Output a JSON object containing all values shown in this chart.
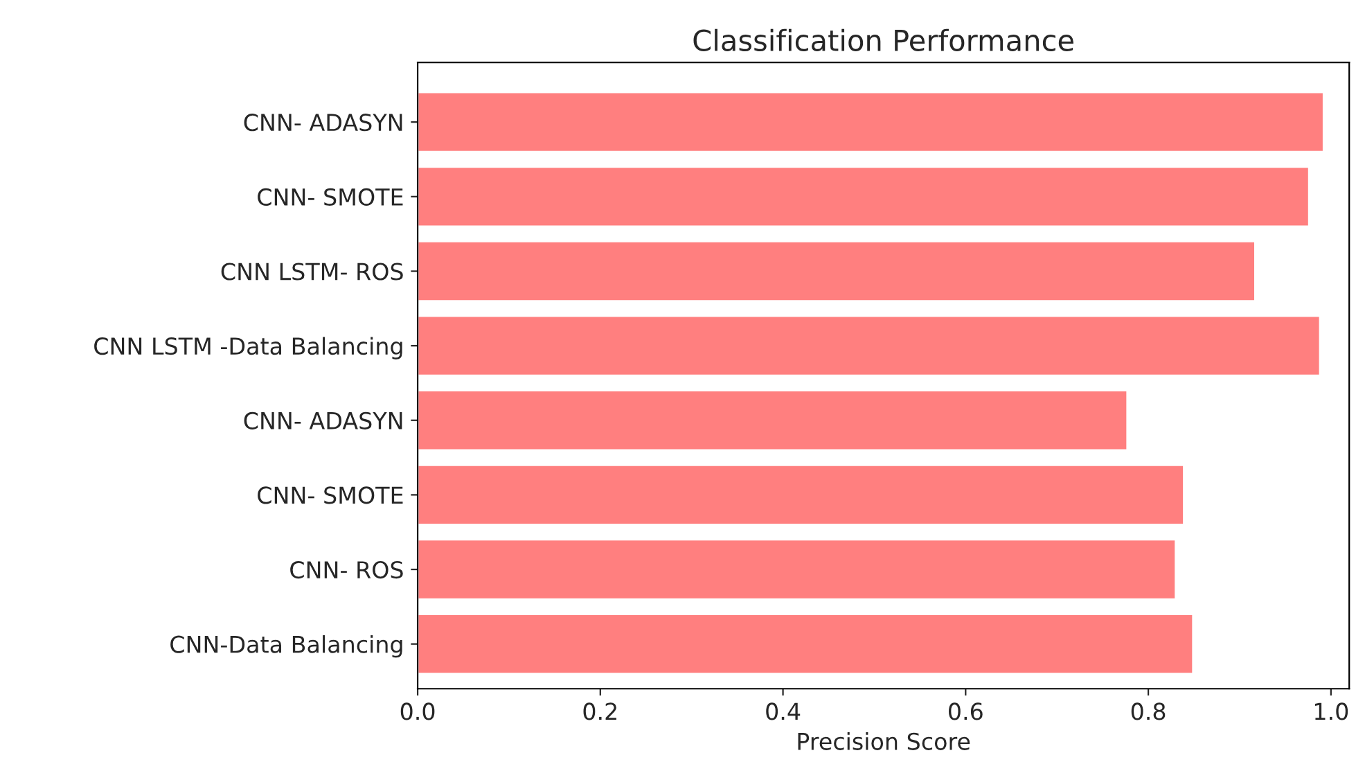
{
  "chart_data": {
    "type": "bar",
    "orientation": "horizontal",
    "title": "Classification Performance",
    "xlabel": "Precision Score",
    "categories": [
      "CNN- ADASYN",
      "CNN- SMOTE",
      "CNN LSTM- ROS",
      "CNN LSTM -Data Balancing",
      "CNN- ADASYN",
      "CNN- SMOTE",
      "CNN- ROS",
      "CNN-Data Balancing"
    ],
    "values": [
      0.992,
      0.976,
      0.917,
      0.988,
      0.777,
      0.839,
      0.83,
      0.849
    ],
    "color": "#ff7f7f",
    "xlim": [
      0,
      1.02
    ],
    "xticks": [
      {
        "value": 0,
        "label": "0.0"
      },
      0.2,
      0.4,
      0.6,
      0.8,
      {
        "value": 1,
        "label": "1.0"
      }
    ],
    "grid": false,
    "legend": false
  }
}
